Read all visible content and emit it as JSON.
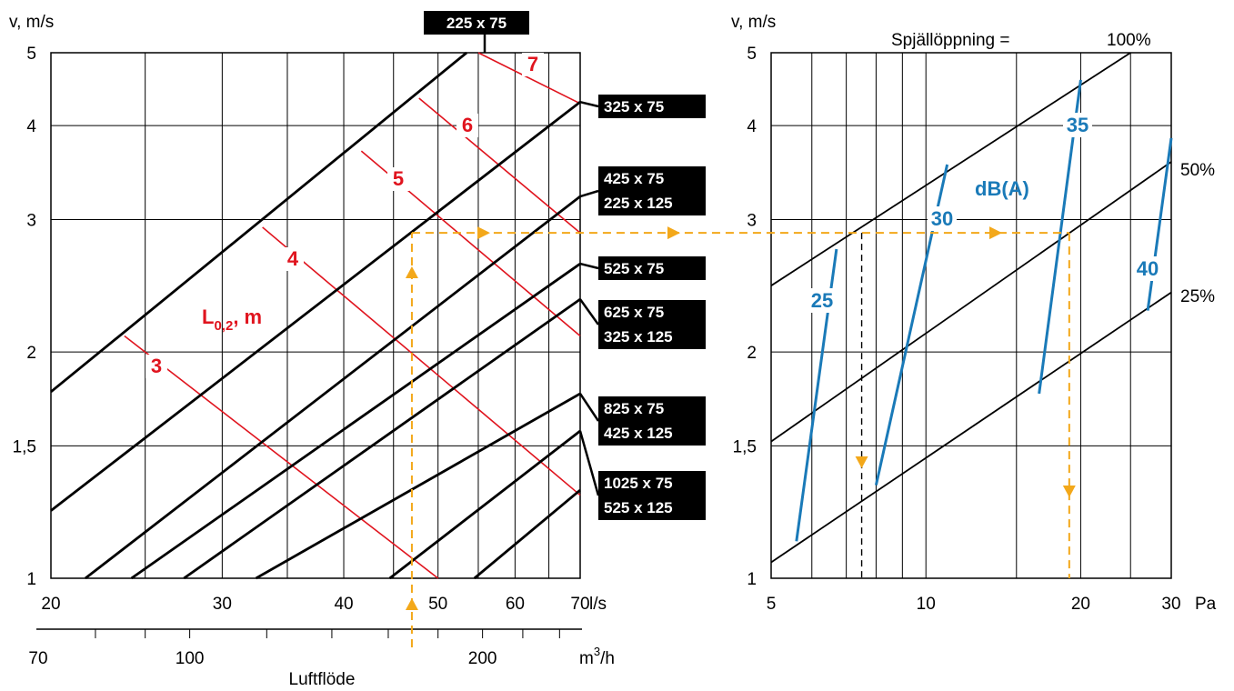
{
  "colors": {
    "black": "#000000",
    "red": "#e0141e",
    "blue": "#1a7ab8",
    "orange": "#f3a81a",
    "grid": "#000000"
  },
  "chart_data": [
    {
      "type": "line",
      "scale": "log-log",
      "ylabel": "v, m/s",
      "xlabel_primary_unit": "l/s",
      "xlabel_secondary_unit": "m³/h",
      "xlabel_secondary_unit_base": "m",
      "xlabel_secondary_unit_exp": "3",
      "xlabel_bottom": "Luftflöde",
      "xlim": [
        20,
        70
      ],
      "ylim": [
        1,
        5
      ],
      "x_ticks": [
        {
          "v": 20,
          "label": "20"
        },
        {
          "v": 30,
          "label": "30"
        },
        {
          "v": 40,
          "label": "40"
        },
        {
          "v": 50,
          "label": "50"
        },
        {
          "v": 60,
          "label": "60"
        },
        {
          "v": 70,
          "label": "70"
        }
      ],
      "x_gridlines": [
        20,
        25,
        30,
        35,
        40,
        45,
        50,
        55,
        60,
        65,
        70
      ],
      "x2_ticks": [
        {
          "v": 72,
          "label": "70"
        },
        {
          "v": 100,
          "label": "100"
        },
        {
          "v": 200,
          "label": "200"
        }
      ],
      "x2_minor": [
        80,
        90,
        100,
        120,
        140,
        160,
        180,
        200,
        220,
        240
      ],
      "y_ticks": [
        {
          "v": 1,
          "label": "1"
        },
        {
          "v": 1.5,
          "label": "1,5"
        },
        {
          "v": 2,
          "label": "2"
        },
        {
          "v": 3,
          "label": "3"
        },
        {
          "v": 4,
          "label": "4"
        },
        {
          "v": 5,
          "label": "5"
        }
      ],
      "y_gridlines": [
        1,
        1.5,
        2,
        3,
        4,
        5
      ],
      "series": [
        {
          "name": "225 x 75",
          "labels": [
            "225 x 75"
          ],
          "points": [
            [
              20,
              1.77
            ],
            [
              53.5,
              5.0
            ]
          ],
          "label_pos": "top"
        },
        {
          "name": "325 x 75",
          "labels": [
            "325 x 75"
          ],
          "points": [
            [
              20,
              1.23
            ],
            [
              70,
              4.3
            ]
          ]
        },
        {
          "name": "425 x 75 / 225 x 125",
          "labels": [
            "425 x 75",
            "225 x 125"
          ],
          "points": [
            [
              21.7,
              1.0
            ],
            [
              70,
              3.22
            ]
          ]
        },
        {
          "name": "525 x 75",
          "labels": [
            "525 x 75"
          ],
          "points": [
            [
              24.2,
              1.0
            ],
            [
              70,
              2.62
            ]
          ]
        },
        {
          "name": "625 x 75 / 325 x 125",
          "labels": [
            "625 x 75",
            "325 x 125"
          ],
          "points": [
            [
              27.4,
              1.0
            ],
            [
              70,
              2.35
            ]
          ]
        },
        {
          "name": "825 x 75 / 425 x 125",
          "labels": [
            "825 x 75",
            "425 x 125"
          ],
          "points": [
            [
              32.5,
              1.0
            ],
            [
              70,
              1.76
            ]
          ]
        },
        {
          "name": "1025 x 75 / 525 x 125",
          "labels": [
            "1025 x 75",
            "525 x 125"
          ],
          "points": [
            [
              44.6,
              1.0
            ],
            [
              70,
              1.57
            ]
          ]
        },
        {
          "name": "1025 x 75 / 525 x 125 lower",
          "labels": [],
          "points": [
            [
              54.5,
              1.0
            ],
            [
              70,
              1.31
            ]
          ]
        }
      ],
      "throw_lines": {
        "title": "L",
        "title_sub": "0,2",
        "title_suffix": ", m",
        "lines": [
          {
            "label": "3",
            "points": [
              [
                23.8,
                2.1
              ],
              [
                50,
                1.0
              ]
            ]
          },
          {
            "label": "4",
            "points": [
              [
                33.0,
                2.93
              ],
              [
                70,
                1.29
              ]
            ]
          },
          {
            "label": "5",
            "points": [
              [
                41.7,
                3.7
              ],
              [
                70,
                2.1
              ]
            ]
          },
          {
            "label": "6",
            "points": [
              [
                47.8,
                4.35
              ],
              [
                70,
                2.88
              ]
            ]
          },
          {
            "label": "7",
            "points": [
              [
                55.0,
                5.0
              ],
              [
                70,
                4.28
              ]
            ]
          }
        ]
      }
    },
    {
      "type": "line",
      "scale": "log-log",
      "ylabel": "v, m/s",
      "xlabel_unit": "Pa",
      "header": "Spjällöppning =",
      "xlim": [
        5,
        30
      ],
      "ylim": [
        1,
        5
      ],
      "x_ticks": [
        {
          "v": 5,
          "label": "5"
        },
        {
          "v": 10,
          "label": "10"
        },
        {
          "v": 20,
          "label": "20"
        },
        {
          "v": 30,
          "label": "30"
        }
      ],
      "x_gridlines": [
        5,
        6,
        7,
        8,
        9,
        10,
        15,
        20,
        25,
        30
      ],
      "y_ticks": [
        {
          "v": 1,
          "label": "1"
        },
        {
          "v": 1.5,
          "label": "1,5"
        },
        {
          "v": 2,
          "label": "2"
        },
        {
          "v": 3,
          "label": "3"
        },
        {
          "v": 4,
          "label": "4"
        },
        {
          "v": 5,
          "label": "5"
        }
      ],
      "y_gridlines": [
        1,
        1.5,
        2,
        3,
        4,
        5
      ],
      "series": [
        {
          "name": "100%",
          "points": [
            [
              5,
              2.45
            ],
            [
              25,
              5.0
            ]
          ]
        },
        {
          "name": "50%",
          "points": [
            [
              5,
              1.52
            ],
            [
              30,
              3.58
            ]
          ]
        },
        {
          "name": "25%",
          "points": [
            [
              5,
              1.05
            ],
            [
              30,
              2.4
            ]
          ]
        }
      ],
      "sound_lines": {
        "title": "dB(A)",
        "lines": [
          {
            "label": "25",
            "points": [
              [
                5.6,
                1.12
              ],
              [
                6.7,
                2.74
              ]
            ]
          },
          {
            "label": "30",
            "points": [
              [
                8.0,
                1.33
              ],
              [
                11.0,
                3.55
              ]
            ]
          },
          {
            "label": "35",
            "points": [
              [
                16.6,
                1.76
              ],
              [
                20.0,
                4.6
              ]
            ]
          },
          {
            "label": "40",
            "points": [
              [
                27.0,
                2.27
              ],
              [
                30.0,
                3.85
              ]
            ]
          }
        ]
      }
    }
  ],
  "example": {
    "flow_ls": 47,
    "velocity": 2.88,
    "pressure": 19,
    "pressure_alt": 7.5
  }
}
